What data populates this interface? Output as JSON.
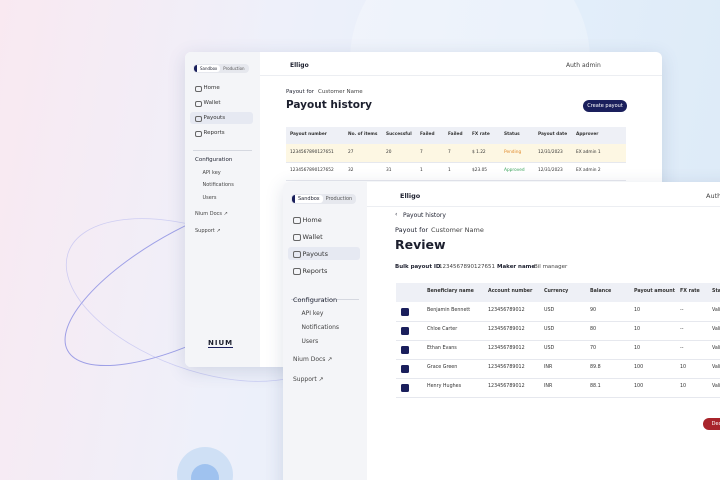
{
  "back_window": {
    "env_tabs": [
      "Sandbox",
      "Production"
    ],
    "nav": [
      "Home",
      "Wallet",
      "Payouts",
      "Reports"
    ],
    "config_title": "Configuration",
    "config_items": [
      "API key",
      "Notifications",
      "Users"
    ],
    "links": [
      "Nium Docs ↗",
      "Support ↗"
    ],
    "logo": "NIUM",
    "brand": "Elligo",
    "user": "Auth admin",
    "payout_for": "Payout for",
    "customer": "Customer Name",
    "title": "Payout history",
    "button": "Create payout",
    "table": {
      "headers": [
        "Payout number",
        "No. of items",
        "Successful",
        "Failed",
        "Failed",
        "FX rate",
        "Status",
        "Payout date",
        "Approver"
      ],
      "rows": [
        [
          "1234567890127651",
          "27",
          "20",
          "7",
          "7",
          "$ 1.22",
          "Pending",
          "12/31/2023",
          "EX admin 1"
        ],
        [
          "1234567890127652",
          "32",
          "31",
          "1",
          "1",
          "$23.05",
          "Approved",
          "12/31/2023",
          "EX admin 2"
        ]
      ]
    }
  },
  "front_window": {
    "env_tabs": [
      "Sandbox",
      "Production"
    ],
    "nav": [
      "Home",
      "Wallet",
      "Payouts",
      "Reports"
    ],
    "config_title": "Configuration",
    "config_items": [
      "API key",
      "Notifications",
      "Users"
    ],
    "links": [
      "Nium Docs ↗",
      "Support ↗"
    ],
    "brand": "Elligo",
    "user": "Auth admin",
    "back_link": "Payout history",
    "payout_for": "Payout for",
    "customer": "Customer Name",
    "title": "Review",
    "bulk_label": "Bulk payout ID",
    "bulk_id": "1234567890127651",
    "maker_label": "Maker name",
    "maker": "Bil manager",
    "table": {
      "headers": [
        "Beneficiary name",
        "Account number",
        "Currency",
        "Balance",
        "Payout amount",
        "FX rate",
        "Status"
      ],
      "rows": [
        [
          "Benjamin Bennett",
          "123456789012",
          "USD",
          "90",
          "10",
          "--",
          "Valid"
        ],
        [
          "Chloe Carter",
          "123456789012",
          "USD",
          "80",
          "10",
          "--",
          "Valid"
        ],
        [
          "Ethan Evans",
          "123456789012",
          "USD",
          "70",
          "10",
          "--",
          "Valid"
        ],
        [
          "Grace Green",
          "123456789012",
          "INR",
          "89.8",
          "100",
          "10",
          "Valid"
        ],
        [
          "Henry Hughes",
          "123456789012",
          "INR",
          "88.1",
          "100",
          "10",
          "Valid"
        ]
      ]
    },
    "decline": "Decline"
  }
}
